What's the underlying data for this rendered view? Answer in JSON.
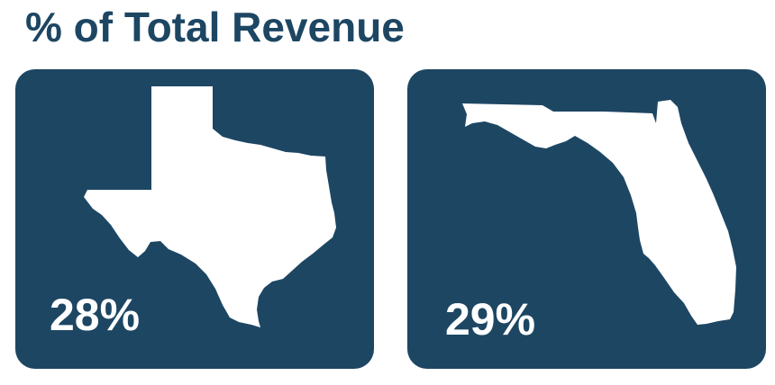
{
  "title": "% of Total Revenue",
  "cards": [
    {
      "state_icon": "texas-map-icon",
      "value": "28%"
    },
    {
      "state_icon": "florida-map-icon",
      "value": "29%"
    }
  ],
  "colors": {
    "title": "#1d4663",
    "card_background": "#1d4663",
    "shape_and_value": "#ffffff"
  }
}
